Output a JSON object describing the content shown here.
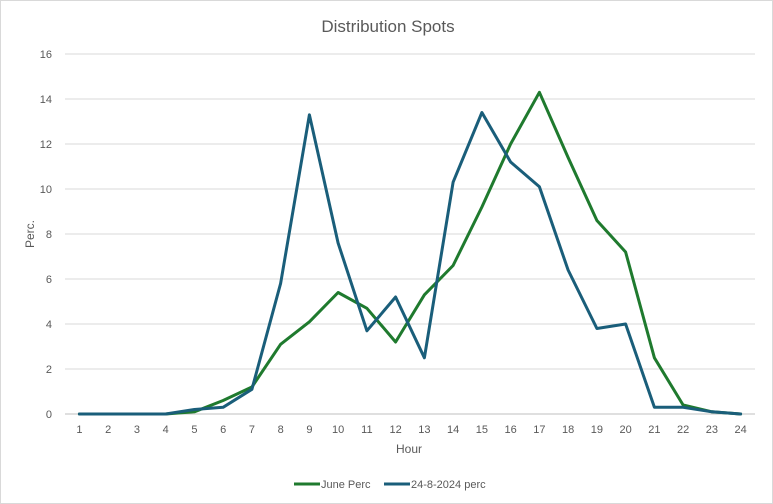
{
  "chart_data": {
    "type": "line",
    "title": "Distribution Spots",
    "xlabel": "Hour",
    "ylabel": "Perc.",
    "ylim": [
      0,
      16
    ],
    "yticks": [
      "0",
      "2",
      "4",
      "6",
      "8",
      "10",
      "12",
      "14",
      "16"
    ],
    "categories": [
      "1",
      "2",
      "3",
      "4",
      "5",
      "6",
      "7",
      "8",
      "9",
      "10",
      "11",
      "12",
      "13",
      "14",
      "15",
      "16",
      "17",
      "18",
      "19",
      "20",
      "21",
      "22",
      "23",
      "24"
    ],
    "grid": "horizontal",
    "legend_position": "bottom",
    "series": [
      {
        "name": "June Perc",
        "color": "#1f7a2e",
        "values": [
          0,
          0,
          0,
          0,
          0.1,
          0.6,
          1.2,
          3.1,
          4.1,
          5.4,
          4.7,
          3.2,
          5.3,
          6.6,
          9.2,
          12.0,
          14.3,
          11.4,
          8.6,
          7.2,
          2.5,
          0.4,
          0.1,
          0
        ]
      },
      {
        "name": "24-8-2024 perc",
        "color": "#1a5e7a",
        "values": [
          0,
          0,
          0,
          0,
          0.2,
          0.3,
          1.1,
          5.8,
          13.3,
          7.6,
          3.7,
          5.2,
          2.5,
          10.3,
          13.4,
          11.2,
          10.1,
          6.4,
          3.8,
          4.0,
          0.3,
          0.3,
          0.1,
          0
        ]
      }
    ]
  }
}
